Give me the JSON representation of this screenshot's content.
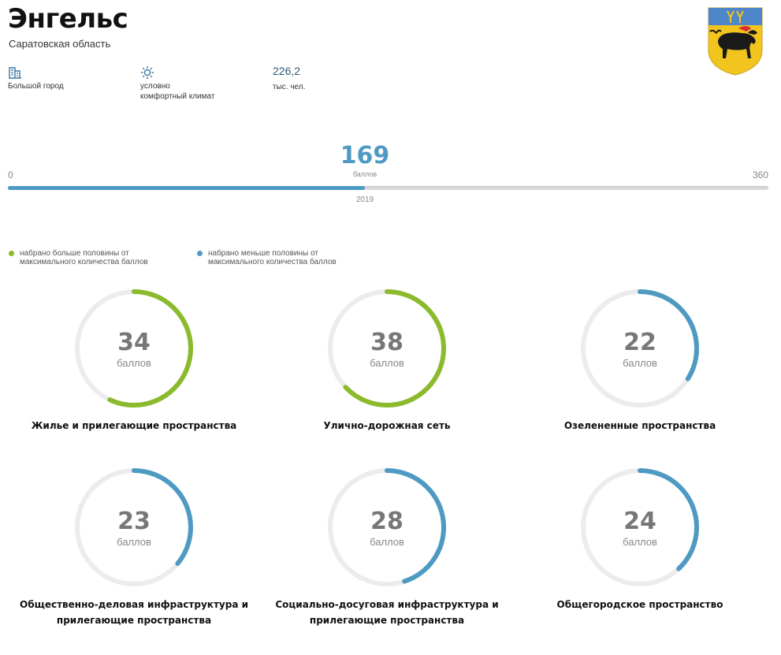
{
  "header": {
    "city": "Энгельс",
    "region": "Саратовская область"
  },
  "info": {
    "city_type": "Большой город",
    "city_type_icon": "building-icon",
    "climate_line1": "условно",
    "climate_line2": "комфортный климат",
    "climate_icon": "sun-icon",
    "population": "226,2",
    "population_unit": "тыс. чел."
  },
  "score": {
    "value": "169",
    "unit": "баллов",
    "min": "0",
    "max": "360",
    "fraction": 0.469,
    "year": "2019"
  },
  "legend": {
    "above_line1": "набрано больше половины от",
    "above_line2": "максимального количества баллов",
    "above_color": "#8bba2c",
    "below_line1": "набрано меньше половины от",
    "below_line2": "максимального количества баллов",
    "below_color": "#4e9ac2"
  },
  "categories": [
    {
      "value": "34",
      "unit": "баллов",
      "label1": "Жилье и прилегающие пространства",
      "label2": "",
      "fraction": 0.57,
      "color": "#8bba2c"
    },
    {
      "value": "38",
      "unit": "баллов",
      "label1": "Улично-дорожная сеть",
      "label2": "",
      "fraction": 0.63,
      "color": "#8bba2c"
    },
    {
      "value": "22",
      "unit": "баллов",
      "label1": "Озелененные пространства",
      "label2": "",
      "fraction": 0.34,
      "color": "#4e9ac2"
    },
    {
      "value": "23",
      "unit": "баллов",
      "label1": "Общественно-деловая инфраструктура и",
      "label2": "прилегающие пространства",
      "fraction": 0.36,
      "color": "#4e9ac2"
    },
    {
      "value": "28",
      "unit": "баллов",
      "label1": "Социально-досуговая инфраструктура и",
      "label2": "прилегающие пространства",
      "fraction": 0.45,
      "color": "#4e9ac2"
    },
    {
      "value": "24",
      "unit": "баллов",
      "label1": "Общегородское пространство",
      "label2": "",
      "fraction": 0.38,
      "color": "#4e9ac2"
    }
  ]
}
